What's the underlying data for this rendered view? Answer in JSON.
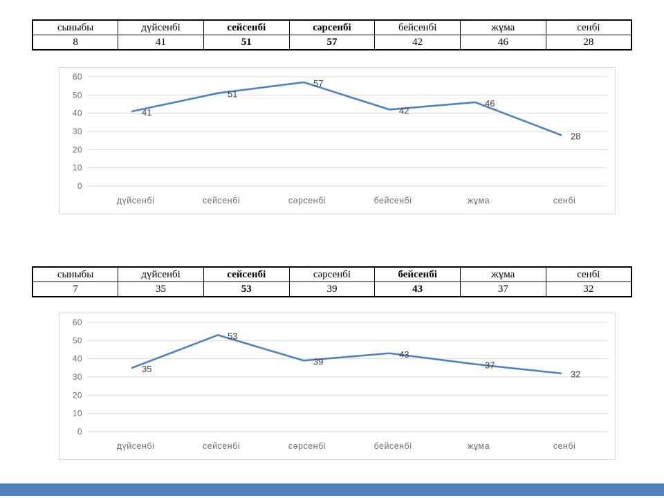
{
  "slide": {
    "background": "#ffffff"
  },
  "tables": [
    {
      "name": "class-8-week-table",
      "headers": [
        "сыныбы",
        "дүйсенбі",
        "сейсенбі",
        "сәрсенбі",
        "бейсенбі",
        "жұма",
        "сенбі"
      ],
      "values": [
        "8",
        "41",
        "51",
        "57",
        "42",
        "46",
        "28"
      ],
      "bold_columns": [
        2,
        3
      ]
    },
    {
      "name": "class-7-week-table",
      "headers": [
        "сыныбы",
        "дүйсенбі",
        "сейсенбі",
        "сәрсенбі",
        "бейсенбі",
        "жұма",
        "сенбі"
      ],
      "values": [
        "7",
        "35",
        "53",
        "39",
        "43",
        "37",
        "32"
      ],
      "bold_columns": [
        2,
        4
      ]
    }
  ],
  "chart_data": [
    {
      "type": "line",
      "title": "",
      "categories": [
        "дүйсенбі",
        "сейсенбі",
        "сәрсенбі",
        "бейсенбі",
        "жұма",
        "сенбі"
      ],
      "values": [
        41,
        51,
        57,
        42,
        46,
        28
      ],
      "data_labels": [
        "41",
        "51",
        "57",
        "42",
        "46",
        "28"
      ],
      "xlabel": "",
      "ylabel": "",
      "ylim": [
        0,
        60
      ],
      "yticks": [
        0,
        10,
        20,
        30,
        40,
        50,
        60
      ],
      "grid": true,
      "legend": false,
      "line_color": "#4E81BD",
      "gridline_color": "#D9D9D9",
      "axis_label_color": "#6E6E6E",
      "data_label_color": "#3F3F3F",
      "panel_border_color": "#D6D6D6"
    },
    {
      "type": "line",
      "title": "",
      "categories": [
        "дүйсенбі",
        "сейсенбі",
        "сәрсенбі",
        "бейсенбі",
        "жұма",
        "сенбі"
      ],
      "values": [
        35,
        53,
        39,
        43,
        37,
        32
      ],
      "data_labels": [
        "35",
        "53",
        "39",
        "43",
        "37",
        "32"
      ],
      "xlabel": "",
      "ylabel": "",
      "ylim": [
        0,
        60
      ],
      "yticks": [
        0,
        10,
        20,
        30,
        40,
        50,
        60
      ],
      "grid": true,
      "legend": false,
      "line_color": "#4E81BD",
      "gridline_color": "#D9D9D9",
      "axis_label_color": "#6E6E6E",
      "data_label_color": "#3F3F3F",
      "panel_border_color": "#D6D6D6"
    }
  ],
  "footer": {
    "bar_color": "#4F81BD"
  }
}
